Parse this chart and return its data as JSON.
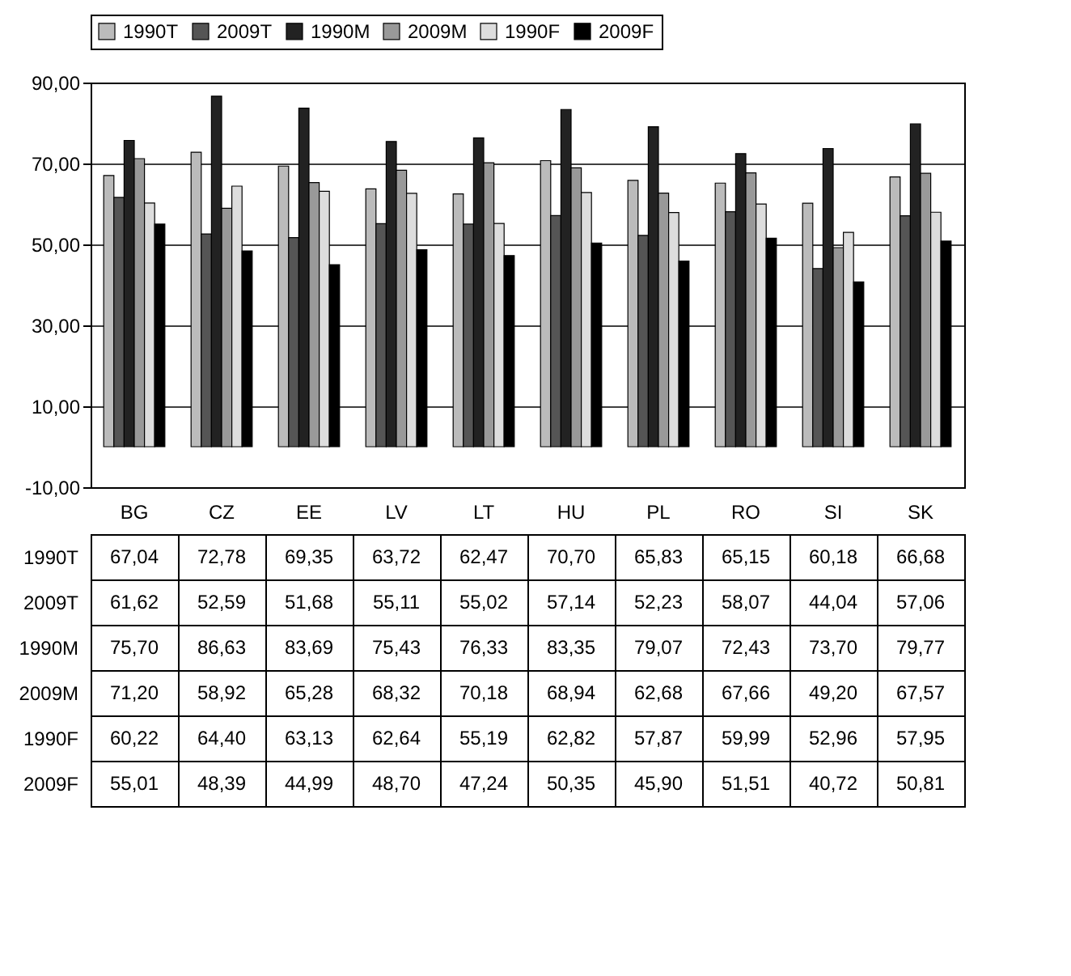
{
  "chart_data": {
    "type": "bar",
    "categories": [
      "BG",
      "CZ",
      "EE",
      "LV",
      "LT",
      "HU",
      "PL",
      "RO",
      "SI",
      "SK"
    ],
    "ylim": [
      -10,
      90
    ],
    "yticks": [
      {
        "value": -10,
        "label": "-10,00"
      },
      {
        "value": 10,
        "label": "10,00"
      },
      {
        "value": 30,
        "label": "30,00"
      },
      {
        "value": 50,
        "label": "50,00"
      },
      {
        "value": 70,
        "label": "70,00"
      },
      {
        "value": 90,
        "label": "90,00"
      }
    ],
    "grid": "y",
    "legend": "top",
    "series": [
      {
        "name": "1990T",
        "color": "#bbbbbb",
        "values": [
          67.04,
          72.78,
          69.35,
          63.72,
          62.47,
          70.7,
          65.83,
          65.15,
          60.18,
          66.68
        ],
        "value_labels": [
          "67,04",
          "72,78",
          "69,35",
          "63,72",
          "62,47",
          "70,70",
          "65,83",
          "65,15",
          "60,18",
          "66,68"
        ]
      },
      {
        "name": "2009T",
        "color": "#555555",
        "values": [
          61.62,
          52.59,
          51.68,
          55.11,
          55.02,
          57.14,
          52.23,
          58.07,
          44.04,
          57.06
        ],
        "value_labels": [
          "61,62",
          "52,59",
          "51,68",
          "55,11",
          "55,02",
          "57,14",
          "52,23",
          "58,07",
          "44,04",
          "57,06"
        ]
      },
      {
        "name": "1990M",
        "color": "#222222",
        "values": [
          75.7,
          86.63,
          83.69,
          75.43,
          76.33,
          83.35,
          79.07,
          72.43,
          73.7,
          79.77
        ],
        "value_labels": [
          "75,70",
          "86,63",
          "83,69",
          "75,43",
          "76,33",
          "83,35",
          "79,07",
          "72,43",
          "73,70",
          "79,77"
        ]
      },
      {
        "name": "2009M",
        "color": "#999999",
        "values": [
          71.2,
          58.92,
          65.28,
          68.32,
          70.18,
          68.94,
          62.68,
          67.66,
          49.2,
          67.57
        ],
        "value_labels": [
          "71,20",
          "58,92",
          "65,28",
          "68,32",
          "70,18",
          "68,94",
          "62,68",
          "67,66",
          "49,20",
          "67,57"
        ]
      },
      {
        "name": "1990F",
        "color": "#dddddd",
        "values": [
          60.22,
          64.4,
          63.13,
          62.64,
          55.19,
          62.82,
          57.87,
          59.99,
          52.96,
          57.95
        ],
        "value_labels": [
          "60,22",
          "64,40",
          "63,13",
          "62,64",
          "55,19",
          "62,82",
          "57,87",
          "59,99",
          "52,96",
          "57,95"
        ]
      },
      {
        "name": "2009F",
        "color": "#000000",
        "values": [
          55.01,
          48.39,
          44.99,
          48.7,
          47.24,
          50.35,
          45.9,
          51.51,
          40.72,
          50.81
        ],
        "value_labels": [
          "55,01",
          "48,39",
          "44,99",
          "48,70",
          "47,24",
          "50,35",
          "45,90",
          "51,51",
          "40,72",
          "50,81"
        ]
      }
    ]
  }
}
